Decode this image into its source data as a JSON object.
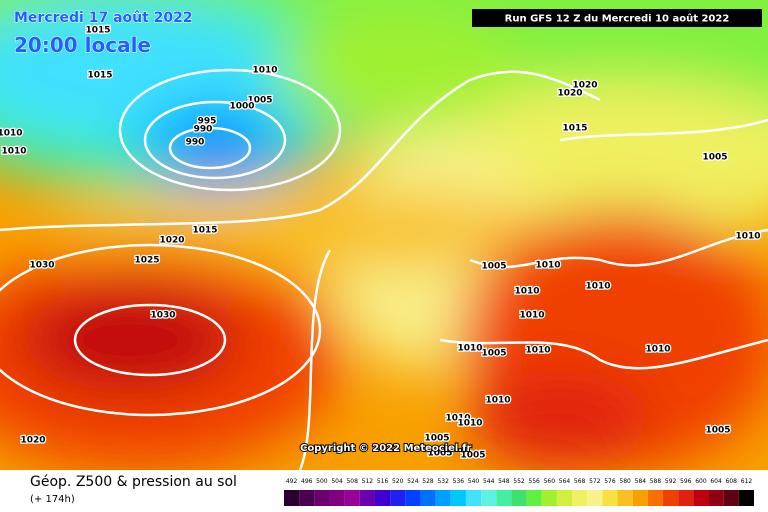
{
  "header": {
    "valid_date": "Mercredi 17 août 2022",
    "local_time": "20:00 locale",
    "run": "Run GFS 12 Z du Mercredi 10 août 2022"
  },
  "footer": {
    "title": "Géop. Z500 & pression au sol",
    "lead": "(+ 174h)"
  },
  "copyright": "Copyright © 2022 Meteociel.fr",
  "isobar_labels": [
    "1015",
    "1015",
    "1010",
    "1005",
    "1000",
    "995",
    "990",
    "990",
    "1010",
    "1010",
    "1020",
    "1015",
    "1020",
    "1015",
    "1005",
    "1030",
    "1025",
    "1030",
    "1020",
    "1020",
    "1010",
    "1005",
    "1010",
    "1010",
    "1010",
    "1010",
    "1010",
    "1005",
    "1010",
    "1010",
    "1010",
    "1010",
    "1005",
    "1005",
    "1005",
    "1010",
    "1005"
  ],
  "scale": {
    "labels": [
      492,
      496,
      500,
      504,
      508,
      512,
      516,
      520,
      524,
      528,
      532,
      536,
      540,
      544,
      548,
      552,
      556,
      560,
      564,
      568,
      572,
      576,
      580,
      584,
      588,
      592,
      596,
      600,
      604,
      608,
      612
    ],
    "colors": [
      "#2a0030",
      "#4a0050",
      "#6a0070",
      "#800080",
      "#9a009a",
      "#6a00b0",
      "#4000d0",
      "#2020f0",
      "#0040ff",
      "#0070ff",
      "#00a0ff",
      "#00c8ff",
      "#40e0ff",
      "#60f0e0",
      "#40f0a0",
      "#40e070",
      "#60f040",
      "#a0f030",
      "#d0f040",
      "#f0f060",
      "#f8f088",
      "#f8e040",
      "#f8c020",
      "#f8a000",
      "#f87000",
      "#f04000",
      "#e02010",
      "#c00010",
      "#900010",
      "#600010",
      "#000000"
    ]
  }
}
